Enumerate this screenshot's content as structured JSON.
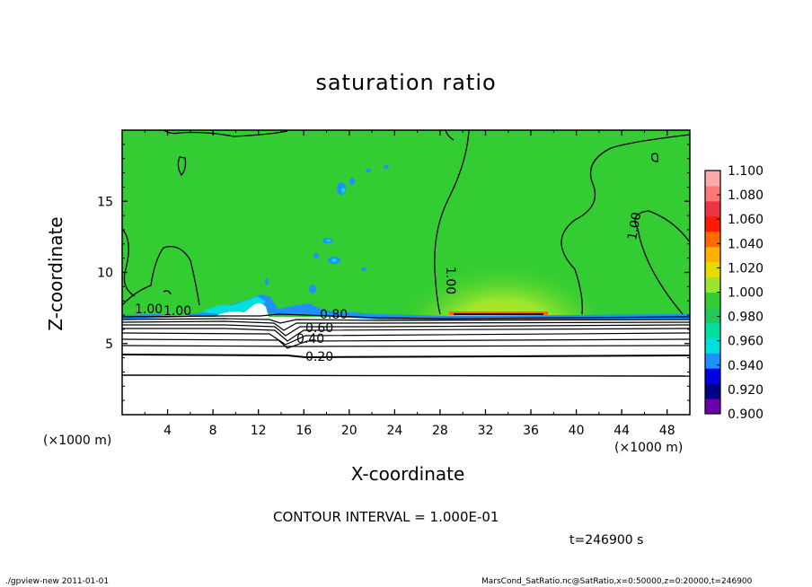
{
  "header": {
    "title": "saturation ratio"
  },
  "footer": {
    "contour_interval": "CONTOUR INTERVAL = 1.000E-01",
    "time": "t=246900 s",
    "left": "./gpview-new  2011-01-01",
    "right": "MarsCond_SatRatio.nc@SatRatio,x=0:50000,z=0:20000,t=246900"
  },
  "chart_data": {
    "type": "heatmap",
    "title": "saturation ratio",
    "xlabel": "X-coordinate",
    "ylabel": "Z-coordinate",
    "x_unit_label": "(×1000 m)",
    "xlim": [
      0,
      50
    ],
    "ylim": [
      0,
      20
    ],
    "xticks": [
      4,
      8,
      12,
      16,
      20,
      24,
      28,
      32,
      36,
      40,
      44,
      48
    ],
    "yticks": [
      5,
      10,
      15
    ],
    "colorbar": {
      "levels": [
        0.9,
        0.92,
        0.94,
        0.96,
        0.98,
        1.0,
        1.02,
        1.04,
        1.06,
        1.08,
        1.1
      ],
      "labels": [
        "0.900",
        "0.920",
        "0.940",
        "0.960",
        "0.980",
        "1.000",
        "1.020",
        "1.040",
        "1.060",
        "1.080",
        "1.100"
      ],
      "colors": [
        "#6a00a8",
        "#00008b",
        "#0000e0",
        "#1e90ff",
        "#00dede",
        "#00e0a0",
        "#23c85a",
        "#33cc33",
        "#9be62d",
        "#e6dd00",
        "#ffb000",
        "#ff6a00",
        "#ff1a00",
        "#ee3344",
        "#ff7777",
        "#ffaaaa"
      ]
    },
    "contour_labels": [
      "1.00",
      "1.00",
      "1.00",
      "1.00",
      "0.80",
      "0.60",
      "0.40",
      "0.20"
    ],
    "contour_interval": 0.1,
    "time_s": 246900
  }
}
